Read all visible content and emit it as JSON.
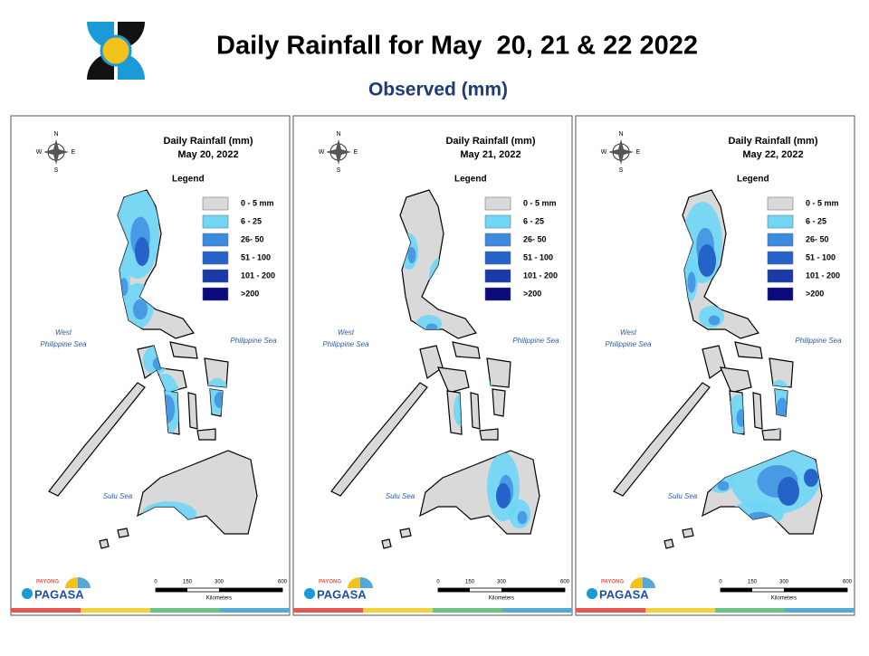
{
  "header": {
    "title": "Daily Rainfall for May  20, 21 & 22 2022",
    "subtitle": "Observed (mm)"
  },
  "panels": [
    {
      "title": "Daily Rainfall (mm)",
      "date": "May 20, 2022"
    },
    {
      "title": "Daily Rainfall (mm)",
      "date": "May 21, 2022"
    },
    {
      "title": "Daily Rainfall (mm)",
      "date": "May 22, 2022"
    }
  ],
  "legend": {
    "title": "Legend",
    "items": [
      "0 - 5 mm",
      "6 - 25",
      "26- 50",
      "51 - 100",
      "101 - 200",
      ">200"
    ],
    "colors": [
      "#d9d9d9",
      "#6fd6f5",
      "#3c8be0",
      "#2563c9",
      "#1a3aa8",
      "#0a0a7a"
    ]
  },
  "compass": {
    "n": "N",
    "s": "S",
    "e": "E",
    "w": "W"
  },
  "seas": {
    "west": [
      "West",
      "Philippine Sea"
    ],
    "east": "Philippine Sea",
    "south": "Sulu Sea"
  },
  "scale": {
    "ticks": [
      0,
      150,
      300,
      600
    ],
    "unit": "Kilometers"
  },
  "logo": {
    "tag": "PAYONG",
    "brand": "PAGASA"
  }
}
